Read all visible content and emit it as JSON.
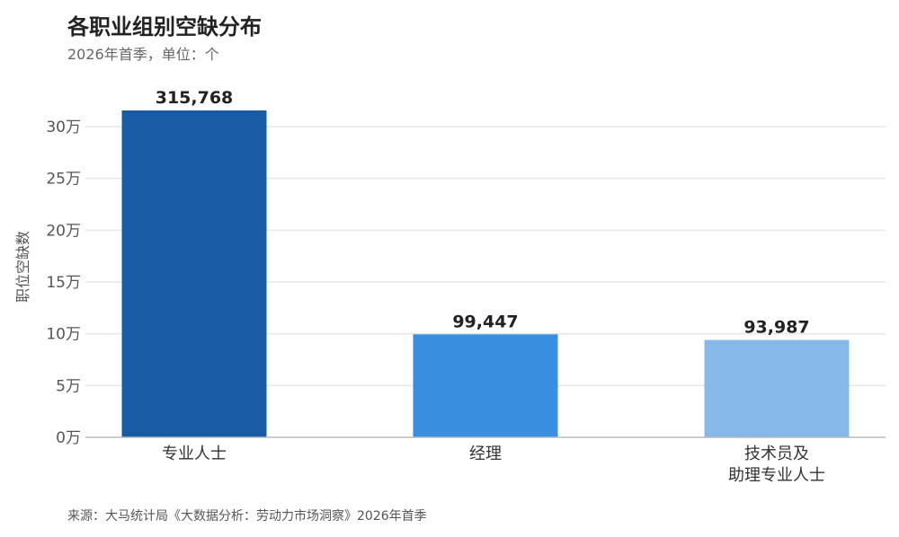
{
  "header": {
    "title": "各职业组别空缺分布",
    "subtitle": "2026年首季，单位：个"
  },
  "footer": {
    "source": "来源：大马统计局《大数据分析：劳动力市场洞察》2026年首季"
  },
  "colors": {
    "bar_1": "#1a5ca3",
    "bar_2": "#3a8ee0",
    "bar_3": "#86b8ea",
    "grid": "#e6e6e6",
    "axis": "#bbbbbb"
  },
  "chart_data": {
    "type": "bar",
    "categories": [
      [
        "专业人士"
      ],
      [
        "经理"
      ],
      [
        "技术员及",
        "助理专业人士"
      ]
    ],
    "values": [
      315768,
      99447,
      93987
    ],
    "data_labels": [
      "315,768",
      "99,447",
      "93,987"
    ],
    "ylabel": "职位空缺数",
    "ylim": [
      0,
      300000
    ],
    "yticks": [
      0,
      50000,
      100000,
      150000,
      200000,
      250000,
      300000
    ],
    "ytick_labels": [
      "0万",
      "5万",
      "10万",
      "15万",
      "20万",
      "25万",
      "30万"
    ],
    "grid": true
  }
}
